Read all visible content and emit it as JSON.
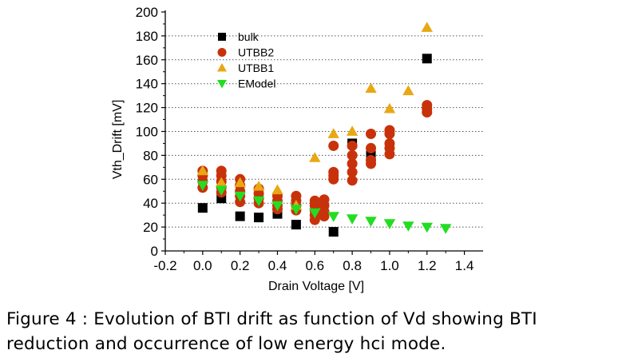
{
  "chart_data": {
    "type": "scatter",
    "title": "",
    "xlabel": "Drain Voltage [V]",
    "ylabel": "Vth_Drift [mV]",
    "xlim": [
      -0.2,
      1.5
    ],
    "ylim": [
      0,
      200
    ],
    "xticks": [
      "-0.2",
      "0.0",
      "0.2",
      "0.4",
      "0.6",
      "0.8",
      "1.0",
      "1.2",
      "1.4"
    ],
    "yticks": [
      "0",
      "20",
      "40",
      "60",
      "80",
      "100",
      "120",
      "140",
      "160",
      "180",
      "200"
    ],
    "grid": "horizontal dotted",
    "legend_position": "top-left",
    "series": [
      {
        "name": "bulk",
        "marker": "square",
        "color": "#000000",
        "points": [
          [
            0.0,
            36
          ],
          [
            0.1,
            44
          ],
          [
            0.2,
            29
          ],
          [
            0.3,
            28
          ],
          [
            0.4,
            31
          ],
          [
            0.5,
            22
          ],
          [
            0.7,
            16
          ],
          [
            0.8,
            90
          ],
          [
            0.9,
            80
          ],
          [
            1.2,
            161
          ]
        ]
      },
      {
        "name": "UTBB2",
        "marker": "circle",
        "color": "#c8320a",
        "points": [
          [
            0.0,
            67
          ],
          [
            0.0,
            63
          ],
          [
            0.0,
            58
          ],
          [
            0.0,
            53
          ],
          [
            0.1,
            67
          ],
          [
            0.1,
            63
          ],
          [
            0.1,
            58
          ],
          [
            0.1,
            53
          ],
          [
            0.1,
            49
          ],
          [
            0.2,
            60
          ],
          [
            0.2,
            55
          ],
          [
            0.2,
            50
          ],
          [
            0.2,
            46
          ],
          [
            0.2,
            41
          ],
          [
            0.3,
            52
          ],
          [
            0.3,
            48
          ],
          [
            0.3,
            44
          ],
          [
            0.3,
            40
          ],
          [
            0.4,
            46
          ],
          [
            0.4,
            42
          ],
          [
            0.4,
            38
          ],
          [
            0.4,
            35
          ],
          [
            0.5,
            46
          ],
          [
            0.5,
            42
          ],
          [
            0.5,
            38
          ],
          [
            0.5,
            34
          ],
          [
            0.6,
            42
          ],
          [
            0.6,
            38
          ],
          [
            0.6,
            34
          ],
          [
            0.6,
            30
          ],
          [
            0.6,
            26
          ],
          [
            0.65,
            43
          ],
          [
            0.65,
            38
          ],
          [
            0.65,
            33
          ],
          [
            0.65,
            29
          ],
          [
            0.7,
            88
          ],
          [
            0.7,
            66
          ],
          [
            0.7,
            63
          ],
          [
            0.7,
            60
          ],
          [
            0.8,
            88
          ],
          [
            0.8,
            80
          ],
          [
            0.8,
            73
          ],
          [
            0.8,
            66
          ],
          [
            0.8,
            59
          ],
          [
            0.9,
            98
          ],
          [
            0.9,
            86
          ],
          [
            0.9,
            76
          ],
          [
            0.9,
            73
          ],
          [
            1.0,
            101
          ],
          [
            1.0,
            98
          ],
          [
            1.0,
            90
          ],
          [
            1.0,
            86
          ],
          [
            1.0,
            81
          ],
          [
            1.2,
            122
          ],
          [
            1.2,
            119
          ],
          [
            1.2,
            116
          ]
        ]
      },
      {
        "name": "UTBB1",
        "marker": "triangle-up",
        "color": "#e8a814",
        "points": [
          [
            0.0,
            67
          ],
          [
            0.1,
            57
          ],
          [
            0.2,
            57
          ],
          [
            0.3,
            54
          ],
          [
            0.4,
            51
          ],
          [
            0.5,
            38
          ],
          [
            0.6,
            78
          ],
          [
            0.7,
            98
          ],
          [
            0.8,
            100
          ],
          [
            0.9,
            136
          ],
          [
            1.0,
            119
          ],
          [
            1.1,
            134
          ],
          [
            1.2,
            187
          ]
        ]
      },
      {
        "name": "EModel",
        "marker": "triangle-down",
        "color": "#22dd22",
        "points": [
          [
            0.0,
            55
          ],
          [
            0.1,
            51
          ],
          [
            0.2,
            46
          ],
          [
            0.3,
            42
          ],
          [
            0.4,
            38
          ],
          [
            0.5,
            35
          ],
          [
            0.6,
            32
          ],
          [
            0.7,
            29
          ],
          [
            0.8,
            27
          ],
          [
            0.9,
            25
          ],
          [
            1.0,
            23
          ],
          [
            1.1,
            21
          ],
          [
            1.2,
            20
          ],
          [
            1.3,
            19
          ]
        ]
      }
    ]
  },
  "caption": {
    "line1": "Figure 4 : Evolution of BTI drift as function of Vd showing BTI",
    "line2": "reduction and occurrence of low energy hci mode."
  }
}
